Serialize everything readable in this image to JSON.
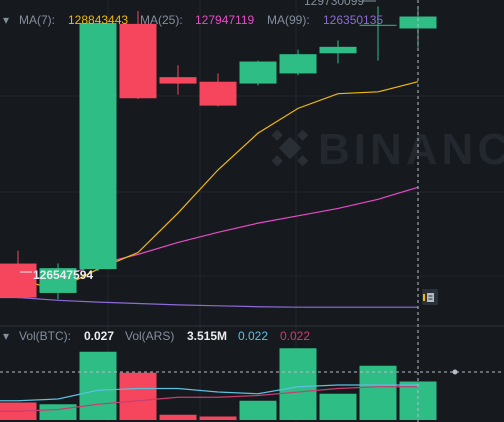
{
  "colors": {
    "background": "#161a1e",
    "grid": "#23272e",
    "up": "#2ebd85",
    "down": "#f6465d",
    "ma7": "#f0b90b",
    "ma25": "#e84ac7",
    "ma99": "#8d6bd6",
    "vol_ma5": "#5bc0de",
    "vol_ma10": "#c73e72",
    "label": "#848e9c",
    "value_white": "#eaecef",
    "crosshair": "#b7bdc6"
  },
  "watermark": "BINANCE",
  "price_legend": {
    "items": [
      {
        "label": "MA(7):",
        "value": "128843443",
        "color_key": "ma7"
      },
      {
        "label": "MA(25):",
        "value": "127947119",
        "color_key": "ma25"
      },
      {
        "label": "MA(99):",
        "value": "126350135",
        "color_key": "ma99"
      }
    ]
  },
  "volume_legend": {
    "items": [
      {
        "label": "Vol(BTC):",
        "value": "0.027",
        "color_key": "value_white"
      },
      {
        "label": "Vol(ARS)",
        "value": "3.515M",
        "color_key": "value_white"
      },
      {
        "label": "",
        "value": "0.022",
        "color_key": "vol_ma5"
      },
      {
        "label": "",
        "value": "0.022",
        "color_key": "vol_ma10"
      }
    ]
  },
  "annotations": {
    "high": "129730099",
    "low": "126547594"
  },
  "chart_data": {
    "type": "candlestick",
    "price_range": [
      126250000,
      129800000
    ],
    "candles": [
      {
        "o": 126930000,
        "h": 127070000,
        "l": 126550000,
        "c": 126560000
      },
      {
        "o": 126610000,
        "h": 126930000,
        "l": 126540000,
        "c": 126880000
      },
      {
        "o": 126870000,
        "h": 129550000,
        "l": 126850000,
        "c": 129550000
      },
      {
        "o": 129540000,
        "h": 129680000,
        "l": 128720000,
        "c": 128730000
      },
      {
        "o": 128960000,
        "h": 129090000,
        "l": 128770000,
        "c": 128890000
      },
      {
        "o": 128910000,
        "h": 129000000,
        "l": 128640000,
        "c": 128650000
      },
      {
        "o": 128890000,
        "h": 129140000,
        "l": 128870000,
        "c": 129130000
      },
      {
        "o": 129000000,
        "h": 129260000,
        "l": 128980000,
        "c": 129210000
      },
      {
        "o": 129220000,
        "h": 129360000,
        "l": 129110000,
        "c": 129290000
      },
      {
        "o": 129520000,
        "h": 129730000,
        "l": 129140000,
        "c": 129530000
      },
      {
        "o": 129490000,
        "h": 129730000,
        "l": 129280000,
        "c": 129620000
      }
    ],
    "ma7": [
      126750000,
      126650000,
      126870000,
      127050000,
      127480000,
      127950000,
      128350000,
      128620000,
      128780000,
      128800000,
      128910000
    ],
    "ma25": [
      126770000,
      126780000,
      126920000,
      127030000,
      127160000,
      127270000,
      127370000,
      127450000,
      127530000,
      127630000,
      127760000
    ],
    "ma99": [
      126560000,
      126530000,
      126510000,
      126495000,
      126480000,
      126470000,
      126460000,
      126455000,
      126455000,
      126455000,
      126455000
    ],
    "volume_range": [
      0,
      0.04
    ],
    "volumes": [
      0.01,
      0.009,
      0.039,
      0.027,
      0.003,
      0.002,
      0.011,
      0.041,
      0.015,
      0.031,
      0.022
    ],
    "vol_ma5": [
      0.011,
      0.012,
      0.017,
      0.018,
      0.018,
      0.016,
      0.015,
      0.019,
      0.02,
      0.02,
      0.02
    ],
    "vol_ma10": [
      0.005,
      0.006,
      0.009,
      0.011,
      0.013,
      0.013,
      0.014,
      0.016,
      0.018,
      0.019,
      0.019
    ],
    "grid": true,
    "legend_position": "top-left"
  }
}
